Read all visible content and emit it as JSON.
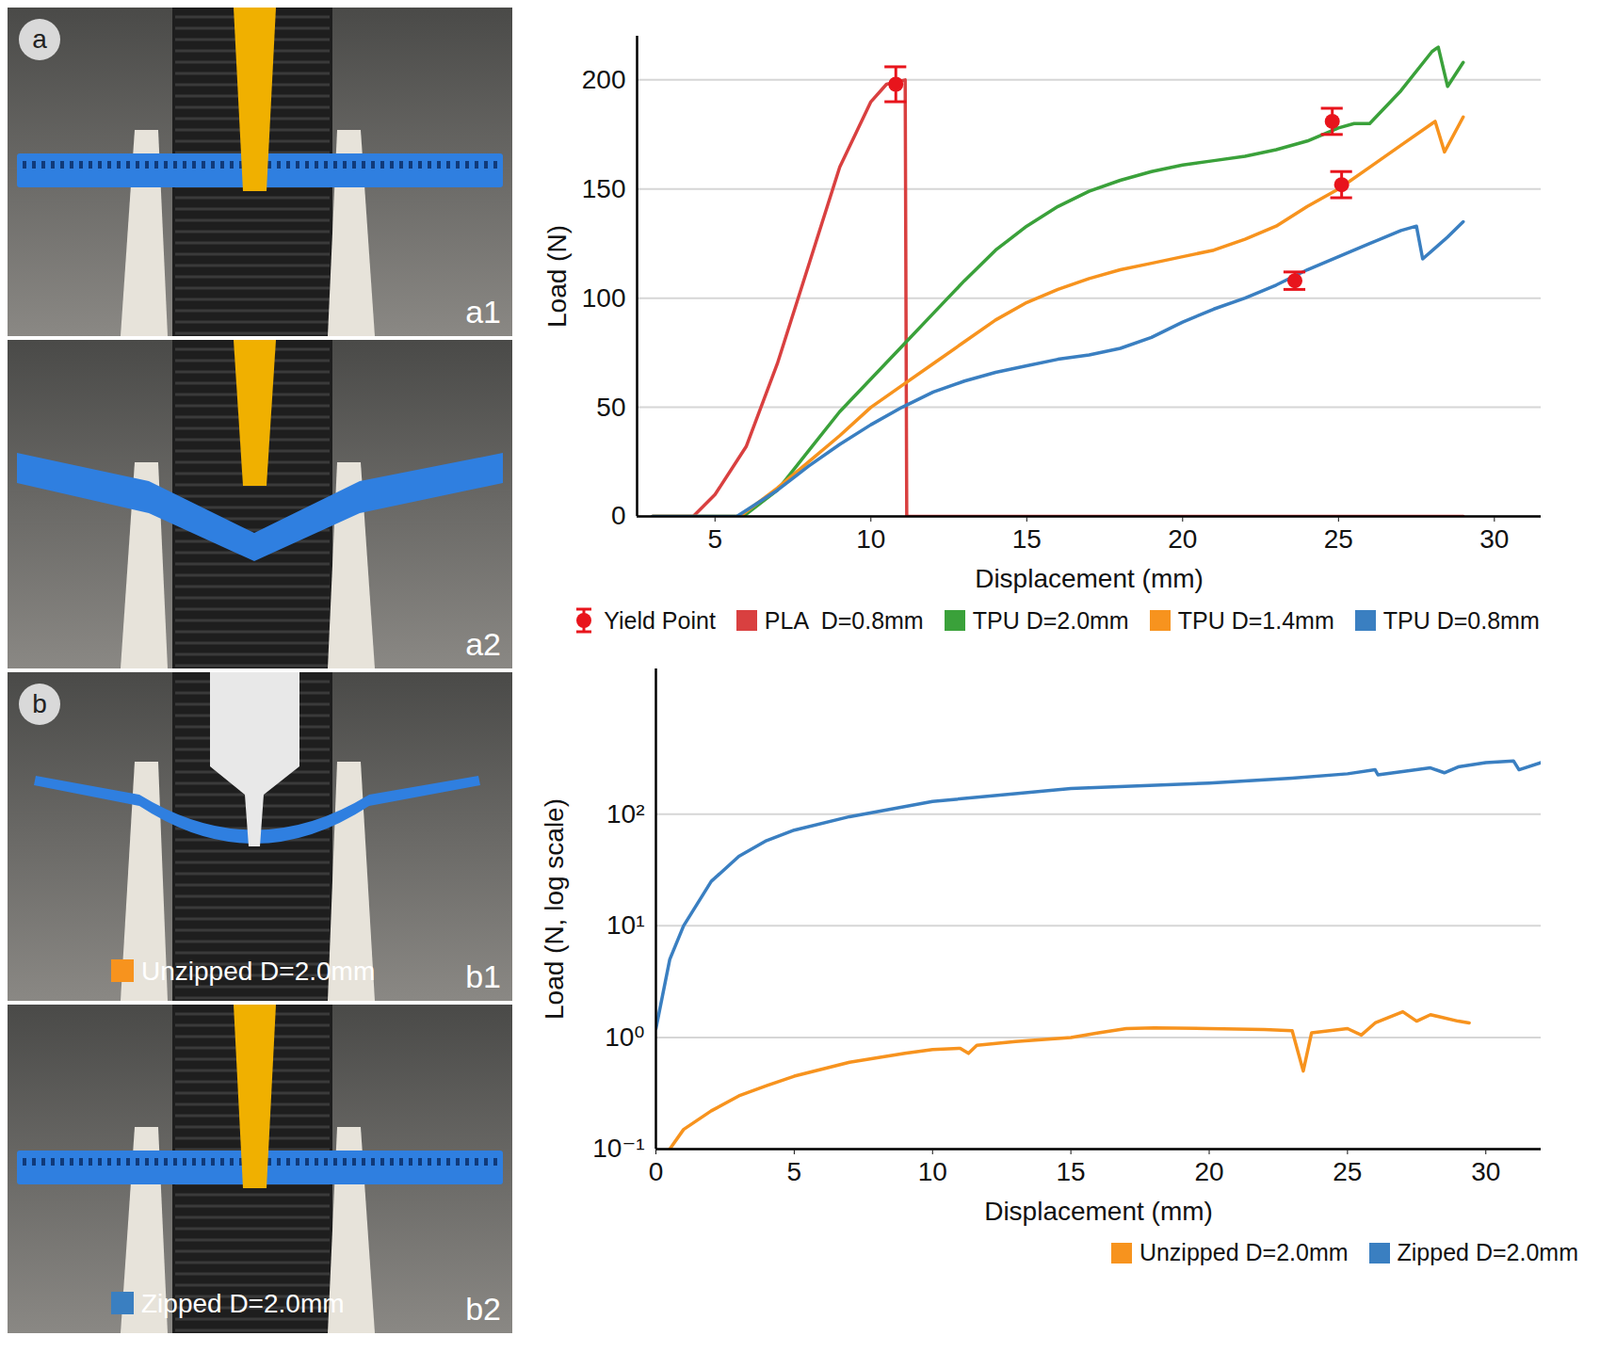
{
  "panels": [
    {
      "letter": "a",
      "photos": [
        {
          "label": "a1"
        },
        {
          "label": "a2"
        }
      ]
    },
    {
      "letter": "b",
      "photos": [
        {
          "label": "b1",
          "caption": "Unzipped D=2.0mm",
          "color": "#f7931e"
        },
        {
          "label": "b2",
          "caption": "Zipped D=2.0mm",
          "color": "#3a7fc1"
        }
      ]
    }
  ],
  "chart_data": [
    {
      "type": "line",
      "xlabel": "Displacement (mm)",
      "ylabel": "Load (N)",
      "xlim": [
        2.5,
        31.5
      ],
      "ylim": [
        0,
        220
      ],
      "xticks": [
        5,
        10,
        15,
        20,
        25,
        30
      ],
      "yticks": [
        0,
        50,
        100,
        150,
        200
      ],
      "grid": true,
      "legend": "bottom",
      "series": [
        {
          "name": "Yield Point",
          "type": "scatter",
          "marker": "circle",
          "color": "#e8141c",
          "x": [
            10.8,
            24.8,
            25.1,
            23.6
          ],
          "values": [
            198,
            181,
            152,
            108
          ],
          "errors": [
            8,
            6,
            6,
            4
          ]
        },
        {
          "name": "PLA  D=0.8mm",
          "color": "#d94040",
          "x": [
            3,
            4.3,
            5,
            6,
            7,
            8,
            9,
            10,
            10.5,
            11.1,
            11.15,
            29
          ],
          "values": [
            0,
            0,
            10,
            32,
            70,
            115,
            160,
            190,
            198,
            200,
            0,
            0
          ]
        },
        {
          "name": "TPU D=2.0mm",
          "color": "#3aa13a",
          "x": [
            3,
            5.7,
            6,
            7,
            8,
            9,
            10,
            11,
            12,
            13,
            14,
            15,
            16,
            17,
            18,
            19,
            20,
            21,
            22,
            23,
            24,
            25,
            25.5,
            26,
            27,
            28,
            28.2,
            28.5,
            29
          ],
          "values": [
            0,
            0,
            1,
            12,
            30,
            48,
            63,
            78,
            93,
            108,
            122,
            133,
            142,
            149,
            154,
            158,
            161,
            163,
            165,
            168,
            172,
            178,
            180,
            180,
            195,
            213,
            215,
            197,
            208
          ]
        },
        {
          "name": "TPU D=1.4mm",
          "color": "#f7931e",
          "x": [
            3,
            5.8,
            7,
            8,
            9,
            10,
            11,
            12,
            13,
            14,
            15,
            16,
            17,
            18,
            19,
            20,
            21,
            22,
            23,
            24,
            25,
            26,
            27,
            28,
            28.1,
            28.4,
            29
          ],
          "values": [
            0,
            0,
            13,
            25,
            37,
            50,
            60,
            70,
            80,
            90,
            98,
            104,
            109,
            113,
            116,
            119,
            122,
            127,
            133,
            142,
            150,
            160,
            170,
            180,
            181,
            167,
            183
          ]
        },
        {
          "name": "TPU D=0.8mm",
          "color": "#3a7fc1",
          "x": [
            3,
            5.7,
            7,
            8,
            9,
            10,
            11,
            12,
            13,
            14,
            15,
            16,
            17,
            18,
            19,
            20,
            21,
            22,
            23,
            24,
            25,
            26,
            27,
            27.5,
            27.7,
            28.5,
            29
          ],
          "values": [
            0,
            0,
            12,
            23,
            33,
            42,
            50,
            57,
            62,
            66,
            69,
            72,
            74,
            77,
            82,
            89,
            95,
            100,
            106,
            113,
            119,
            125,
            131,
            133,
            118,
            128,
            135
          ]
        }
      ]
    },
    {
      "type": "line",
      "xlabel": "Displacement (mm)",
      "ylabel": "Load (N, log scale)",
      "log": "y",
      "xlim": [
        0,
        32
      ],
      "ylim": [
        0.1,
        2000
      ],
      "xticks": [
        0,
        5,
        10,
        15,
        20,
        25,
        30
      ],
      "yticks": [
        {
          "value": 0.1,
          "label": "10⁻¹"
        },
        {
          "value": 1,
          "label": "10⁰"
        },
        {
          "value": 10,
          "label": "10¹"
        },
        {
          "value": 100,
          "label": "10²"
        }
      ],
      "grid": true,
      "legend": "bottom-right",
      "series": [
        {
          "name": "Unzipped D=2.0mm",
          "color": "#f7931e",
          "x": [
            0.5,
            1,
            2,
            3,
            4,
            5,
            7,
            9,
            10,
            11,
            11.3,
            11.6,
            13,
            15,
            16,
            17,
            18,
            20,
            22,
            23,
            23.4,
            23.7,
            25,
            25.5,
            26,
            27,
            27.5,
            28,
            29,
            29.4
          ],
          "values": [
            0.1,
            0.15,
            0.22,
            0.3,
            0.37,
            0.45,
            0.6,
            0.72,
            0.78,
            0.8,
            0.72,
            0.85,
            0.92,
            1.0,
            1.1,
            1.2,
            1.22,
            1.2,
            1.18,
            1.15,
            0.5,
            1.1,
            1.2,
            1.05,
            1.35,
            1.7,
            1.4,
            1.6,
            1.4,
            1.35
          ]
        },
        {
          "name": "Zipped D=2.0mm",
          "color": "#3a7fc1",
          "x": [
            0,
            0.5,
            1,
            2,
            3,
            4,
            5,
            7,
            10,
            15,
            20,
            23,
            25,
            26,
            26.1,
            28,
            28.5,
            29,
            30,
            31,
            31.2,
            32
          ],
          "values": [
            1.2,
            5,
            10,
            25,
            42,
            58,
            72,
            95,
            130,
            170,
            190,
            210,
            230,
            250,
            225,
            260,
            235,
            265,
            290,
            300,
            250,
            290
          ]
        }
      ]
    }
  ]
}
